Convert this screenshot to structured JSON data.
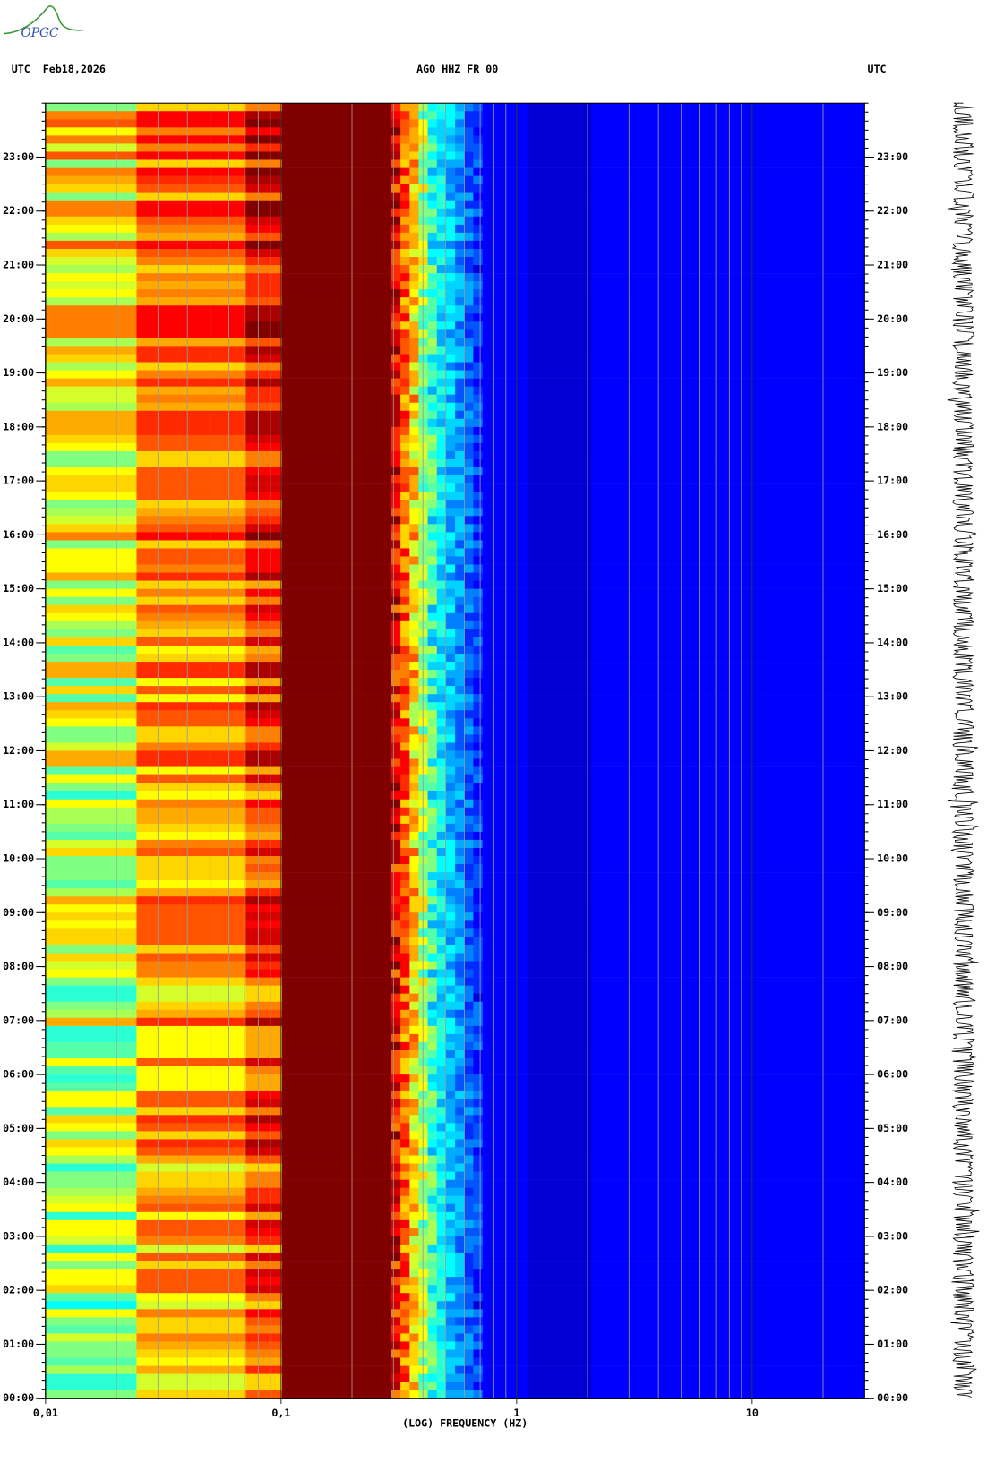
{
  "logo": "OPGC",
  "chart_data": {
    "type": "spectrogram",
    "title": "AGO HHZ FR 00",
    "date_label": "UTC  Feb18,2026",
    "left_axis_label": "UTC",
    "right_axis_label": "UTC",
    "x_label": "(LOG) FREQUENCY (HZ)",
    "x_scale": "log",
    "xlim": [
      0.01,
      30
    ],
    "xticks": [
      {
        "value": 0.01,
        "label": "0,01"
      },
      {
        "value": 0.1,
        "label": "0,1"
      },
      1,
      10
    ],
    "ylim": [
      0,
      24
    ],
    "yticks": [
      {
        "value": 0,
        "label": "00:00"
      },
      {
        "value": 1,
        "label": "01:00"
      },
      {
        "value": 2,
        "label": "02:00"
      },
      {
        "value": 3,
        "label": "03:00"
      },
      {
        "value": 4,
        "label": "04:00"
      },
      {
        "value": 5,
        "label": "05:00"
      },
      {
        "value": 6,
        "label": "06:00"
      },
      {
        "value": 7,
        "label": "07:00"
      },
      {
        "value": 8,
        "label": "08:00"
      },
      {
        "value": 9,
        "label": "09:00"
      },
      {
        "value": 10,
        "label": "10:00"
      },
      {
        "value": 11,
        "label": "11:00"
      },
      {
        "value": 12,
        "label": "12:00"
      },
      {
        "value": 13,
        "label": "13:00"
      },
      {
        "value": 14,
        "label": "14:00"
      },
      {
        "value": 15,
        "label": "15:00"
      },
      {
        "value": 16,
        "label": "16:00"
      },
      {
        "value": 17,
        "label": "17:00"
      },
      {
        "value": 18,
        "label": "18:00"
      },
      {
        "value": 19,
        "label": "19:00"
      },
      {
        "value": 20,
        "label": "20:00"
      },
      {
        "value": 21,
        "label": "21:00"
      },
      {
        "value": 22,
        "label": "22:00"
      },
      {
        "value": 23,
        "label": "23:00"
      }
    ]
  }
}
